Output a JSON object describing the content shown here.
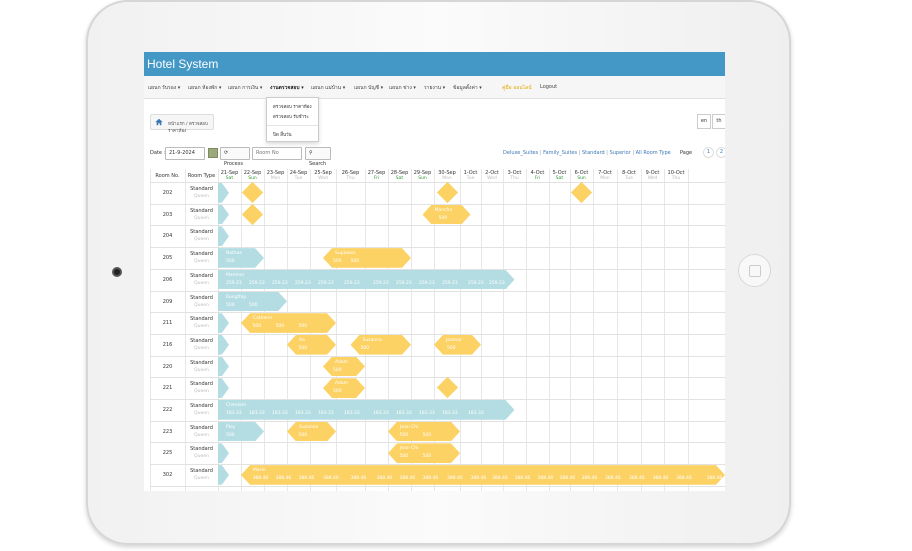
{
  "app": {
    "title": "Hotel System"
  },
  "nav": [
    "แผนก รับรอง",
    "แผนก ห้องพัก",
    "แผนก การเงิน",
    "งานตรวจสอบ",
    "แผนก แม่บ้าน",
    "แผนก บัญชี",
    "แผนก ช่าง",
    "รายงาน",
    "ข้อมูลตั้งค่า",
    "คู่มือ ออนไลน์",
    "Logout"
  ],
  "dropdown": [
    "ตรวจสอบ ราคาห้อง",
    "ตรวจสอบ รับชำระ",
    "ปิด สิ้นวัน"
  ],
  "breadcrumb": "หน้าแรก / ตรวจสอบราคาห้อง",
  "lang": [
    "en",
    "th"
  ],
  "toolbar": {
    "date_label": "Date :",
    "date_value": "21-9-2024",
    "process": "Process",
    "room_placeholder": "Room No",
    "search": "Search",
    "page_label": "Page",
    "pages": [
      "1",
      "2"
    ]
  },
  "room_type_links": [
    "Deluxe_Suites",
    "Family_Suites",
    "Standard",
    "Superior",
    "All Room Type"
  ],
  "grid_headers": {
    "room_no": "Room No.",
    "room_type": "Room Type"
  },
  "dates": [
    {
      "d": "21-Sep",
      "w": "Sat",
      "g": true
    },
    {
      "d": "22-Sep",
      "w": "Sun",
      "g": true
    },
    {
      "d": "23-Sep",
      "w": "Mon",
      "g": false
    },
    {
      "d": "24-Sep",
      "w": "Tue",
      "g": false
    },
    {
      "d": "25-Sep",
      "w": "Wed",
      "g": false
    },
    {
      "d": "26-Sep",
      "w": "Thu",
      "g": false
    },
    {
      "d": "27-Sep",
      "w": "Fri",
      "g": true
    },
    {
      "d": "28-Sep",
      "w": "Sat",
      "g": true
    },
    {
      "d": "29-Sep",
      "w": "Sun",
      "g": true
    },
    {
      "d": "30-Sep",
      "w": "Mon",
      "g": false
    },
    {
      "d": "1-Oct",
      "w": "Tue",
      "g": false
    },
    {
      "d": "2-Oct",
      "w": "Wed",
      "g": false
    },
    {
      "d": "3-Oct",
      "w": "Thu",
      "g": false
    },
    {
      "d": "4-Oct",
      "w": "Fri",
      "g": true
    },
    {
      "d": "5-Oct",
      "w": "Sat",
      "g": true
    },
    {
      "d": "6-Oct",
      "w": "Sun",
      "g": true
    },
    {
      "d": "7-Oct",
      "w": "Mon",
      "g": false
    },
    {
      "d": "8-Oct",
      "w": "Tue",
      "g": false
    },
    {
      "d": "9-Oct",
      "w": "Wed",
      "g": false
    },
    {
      "d": "10-Oct",
      "w": "Thu",
      "g": false
    }
  ],
  "rooms": [
    {
      "no": "202",
      "type": "Standard",
      "bed": "Queen"
    },
    {
      "no": "203",
      "type": "Standard",
      "bed": "Queen"
    },
    {
      "no": "204",
      "type": "Standard",
      "bed": "Queen"
    },
    {
      "no": "205",
      "type": "Standard",
      "bed": "Queen"
    },
    {
      "no": "206",
      "type": "Standard",
      "bed": "Queen"
    },
    {
      "no": "209",
      "type": "Standard",
      "bed": "Queen"
    },
    {
      "no": "211",
      "type": "Standard",
      "bed": "Queen"
    },
    {
      "no": "216",
      "type": "Standard",
      "bed": "Queen"
    },
    {
      "no": "220",
      "type": "Standard",
      "bed": "Queen"
    },
    {
      "no": "221",
      "type": "Standard",
      "bed": "Queen"
    },
    {
      "no": "222",
      "type": "Standard",
      "bed": "Queen"
    },
    {
      "no": "223",
      "type": "Standard",
      "bed": "Queen"
    },
    {
      "no": "225",
      "type": "Standard",
      "bed": "Queen"
    },
    {
      "no": "302",
      "type": "Standard",
      "bed": "Queen"
    }
  ],
  "bookings": [
    {
      "row": 3,
      "from": 0,
      "to": 2,
      "color": "b",
      "name": "Nathan",
      "prices": [
        "500"
      ]
    },
    {
      "row": 3,
      "from": 4.5,
      "to": 8,
      "color": "o",
      "name": "Supawan",
      "prices": [
        "500",
        "500"
      ]
    },
    {
      "row": 4,
      "from": 0,
      "to": 12.5,
      "color": "b",
      "name": "Manmor",
      "prices": [
        "259.23",
        "259.23",
        "259.23",
        "259.23",
        "259.23",
        "259.23",
        "259.23",
        "259.23",
        "259.23",
        "259.23",
        "259.23",
        "259.23"
      ]
    },
    {
      "row": 5,
      "from": 0,
      "to": 3,
      "color": "b",
      "name": "Rungthip",
      "prices": [
        "500",
        "500"
      ]
    },
    {
      "row": 6,
      "from": 1,
      "to": 5,
      "color": "o",
      "name": "Catherin",
      "prices": [
        "500",
        "500",
        "500"
      ]
    },
    {
      "row": 7,
      "from": 3,
      "to": 5,
      "color": "o",
      "name": "Aa",
      "prices": [
        "500"
      ]
    },
    {
      "row": 7,
      "from": 5.5,
      "to": 8,
      "color": "o",
      "name": "Suzanna",
      "prices": [
        "500"
      ]
    },
    {
      "row": 7,
      "from": 9,
      "to": 11,
      "color": "o",
      "name": "Joamar",
      "prices": [
        "500"
      ]
    },
    {
      "row": 8,
      "from": 4.5,
      "to": 6,
      "color": "o",
      "name": "Adam",
      "prices": [
        "500"
      ]
    },
    {
      "row": 9,
      "from": 4.5,
      "to": 6,
      "color": "o",
      "name": "Adam",
      "prices": [
        "500"
      ]
    },
    {
      "row": 10,
      "from": 0,
      "to": 12.5,
      "color": "b",
      "name": "Chenlam",
      "prices": [
        "183.33",
        "183.33",
        "183.33",
        "183.33",
        "183.33",
        "183.33",
        "183.33",
        "183.33",
        "183.33",
        "183.33",
        "183.33"
      ]
    },
    {
      "row": 11,
      "from": 0,
      "to": 2,
      "color": "b",
      "name": "Ploy",
      "prices": [
        "500"
      ]
    },
    {
      "row": 11,
      "from": 3,
      "to": 5,
      "color": "o",
      "name": "Suzanne",
      "prices": [
        "500"
      ]
    },
    {
      "row": 11,
      "from": 7,
      "to": 10,
      "color": "o",
      "name": "Jean Chi",
      "prices": [
        "500",
        "500"
      ]
    },
    {
      "row": 12,
      "from": 7,
      "to": 10,
      "color": "o",
      "name": "Jean Chi",
      "prices": [
        "500",
        "500"
      ]
    },
    {
      "row": 13,
      "from": 1,
      "to": 21,
      "color": "o",
      "name": "Marin",
      "prices": [
        "388.46",
        "388.46",
        "388.46",
        "388.46",
        "388.46",
        "388.46",
        "388.46",
        "388.46",
        "388.46",
        "388.46",
        "388.46",
        "388.46",
        "388.46",
        "388.46",
        "388.46",
        "388.46",
        "388.46",
        "388.46",
        "388.46",
        "388.46"
      ]
    }
  ],
  "extra_prices": [
    {
      "row": 1,
      "col": 9,
      "text": "500",
      "name": "Mancha"
    }
  ],
  "diamonds": [
    {
      "row": 0,
      "col": 1
    },
    {
      "row": 0,
      "col": 9
    },
    {
      "row": 0,
      "col": 15
    },
    {
      "row": 1,
      "col": 1
    },
    {
      "row": 9,
      "col": 9
    }
  ]
}
